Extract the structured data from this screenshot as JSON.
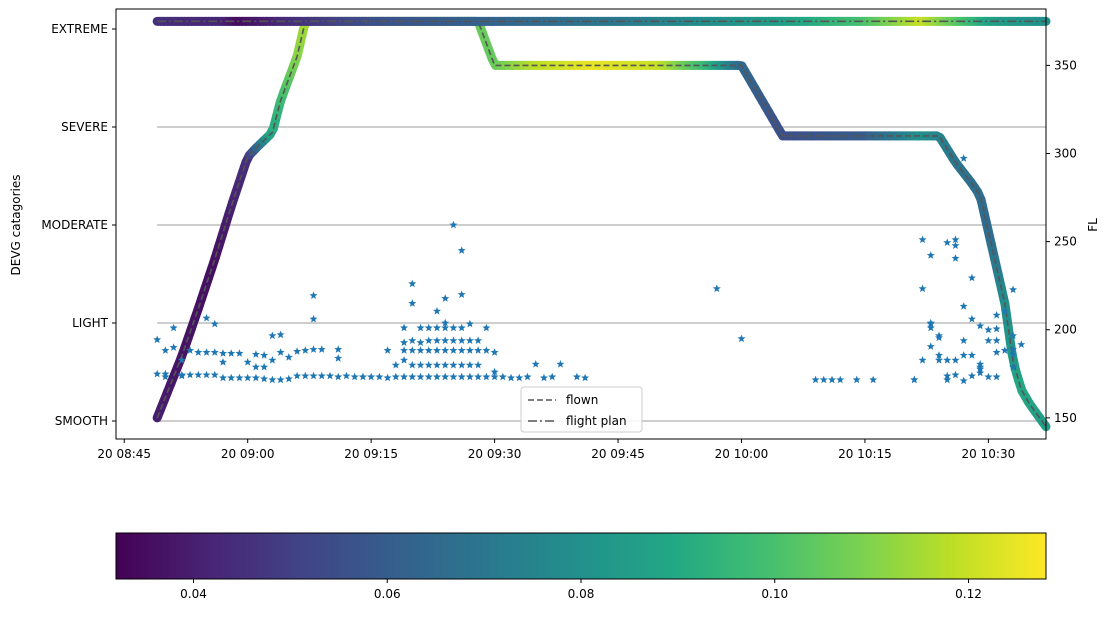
{
  "chart_data": {
    "type": "scatter",
    "x_axis": {
      "ticks": [
        "20 08:45",
        "20 09:00",
        "20 09:15",
        "20 09:30",
        "20 09:45",
        "20 10:00",
        "20 10:15",
        "20 10:30"
      ],
      "tick_minutes": [
        525,
        540,
        555,
        570,
        585,
        600,
        615,
        630
      ],
      "range_minutes": [
        524,
        637
      ]
    },
    "left_axis": {
      "label": "DEVG catagories",
      "categories": [
        "SMOOTH",
        "LIGHT",
        "MODERATE",
        "SEVERE",
        "EXTREME"
      ]
    },
    "right_axis": {
      "label": "FL",
      "ticks": [
        150,
        200,
        250,
        300,
        350
      ],
      "range": [
        138,
        382
      ]
    },
    "colorbar": {
      "ticks": [
        "0.04",
        "0.06",
        "0.08",
        "0.10",
        "0.12"
      ],
      "tick_values": [
        0.04,
        0.06,
        0.08,
        0.1,
        0.12
      ],
      "range": [
        0.032,
        0.128
      ],
      "colors": [
        "#440154",
        "#482475",
        "#414487",
        "#355f8d",
        "#2a788e",
        "#21918c",
        "#22a884",
        "#44bf70",
        "#7ad151",
        "#bddf26",
        "#fde725"
      ]
    },
    "legend": {
      "entries": [
        "flown",
        "flight plan"
      ],
      "placement": "lower center"
    },
    "grid": false,
    "category_lines": true,
    "flown_path": [
      [
        529,
        150
      ],
      [
        532,
        185
      ],
      [
        534,
        212
      ],
      [
        536,
        240
      ],
      [
        538,
        270
      ],
      [
        540,
        298
      ],
      [
        541,
        303
      ],
      [
        543,
        312
      ],
      [
        544,
        330
      ],
      [
        546,
        355
      ],
      [
        547,
        375
      ],
      [
        560,
        375
      ],
      [
        568,
        375
      ],
      [
        570,
        350
      ],
      [
        600,
        350
      ],
      [
        604,
        318
      ],
      [
        605,
        310
      ],
      [
        624,
        310
      ],
      [
        626,
        295
      ],
      [
        628,
        283
      ],
      [
        629,
        276
      ],
      [
        632,
        215
      ],
      [
        633,
        182
      ],
      [
        634,
        166
      ],
      [
        635,
        158
      ],
      [
        637,
        145
      ]
    ],
    "flown_color": [
      [
        529,
        0.04
      ],
      [
        532,
        0.037
      ],
      [
        536,
        0.036
      ],
      [
        540,
        0.045
      ],
      [
        543,
        0.09
      ],
      [
        546,
        0.11
      ],
      [
        547,
        0.115
      ],
      [
        560,
        0.11
      ],
      [
        570,
        0.105
      ],
      [
        575,
        0.118
      ],
      [
        582,
        0.125
      ],
      [
        590,
        0.12
      ],
      [
        596,
        0.095
      ],
      [
        600,
        0.065
      ],
      [
        605,
        0.055
      ],
      [
        615,
        0.06
      ],
      [
        622,
        0.08
      ],
      [
        626,
        0.07
      ],
      [
        630,
        0.065
      ],
      [
        632,
        0.078
      ],
      [
        634,
        0.09
      ],
      [
        637,
        0.085
      ]
    ],
    "plan_path": [
      [
        529,
        375
      ],
      [
        637,
        375
      ]
    ],
    "plan_color": [
      [
        529,
        0.045
      ],
      [
        537,
        0.042
      ],
      [
        539,
        0.035
      ],
      [
        541,
        0.038
      ],
      [
        546,
        0.045
      ],
      [
        555,
        0.055
      ],
      [
        565,
        0.06
      ],
      [
        575,
        0.065
      ],
      [
        585,
        0.07
      ],
      [
        595,
        0.078
      ],
      [
        605,
        0.085
      ],
      [
        615,
        0.1
      ],
      [
        622,
        0.12
      ],
      [
        627,
        0.1
      ],
      [
        631,
        0.085
      ],
      [
        637,
        0.08
      ]
    ],
    "devg_markers": [
      [
        529,
        0.83
      ],
      [
        529,
        0.48
      ],
      [
        530,
        0.72
      ],
      [
        530,
        0.48
      ],
      [
        530,
        0.45
      ],
      [
        531,
        0.95
      ],
      [
        531,
        0.75
      ],
      [
        532,
        0.47
      ],
      [
        532,
        0.62
      ],
      [
        532,
        0.46
      ],
      [
        533,
        0.72
      ],
      [
        533,
        0.47
      ],
      [
        534,
        0.7
      ],
      [
        534,
        0.47
      ],
      [
        535,
        0.7
      ],
      [
        535,
        0.47
      ],
      [
        535,
        1.05
      ],
      [
        536,
        0.7
      ],
      [
        536,
        0.47
      ],
      [
        536,
        0.99
      ],
      [
        537,
        0.69
      ],
      [
        537,
        0.6
      ],
      [
        537,
        0.44
      ],
      [
        538,
        0.69
      ],
      [
        538,
        0.44
      ],
      [
        539,
        0.69
      ],
      [
        539,
        0.44
      ],
      [
        540,
        0.44
      ],
      [
        540,
        0.6
      ],
      [
        541,
        0.68
      ],
      [
        541,
        0.55
      ],
      [
        541,
        0.44
      ],
      [
        542,
        0.55
      ],
      [
        542,
        0.43
      ],
      [
        542,
        0.67
      ],
      [
        543,
        0.42
      ],
      [
        543,
        0.62
      ],
      [
        543,
        0.87
      ],
      [
        544,
        0.88
      ],
      [
        544,
        0.42
      ],
      [
        544,
        0.7
      ],
      [
        545,
        0.43
      ],
      [
        545,
        0.65
      ],
      [
        546,
        0.71
      ],
      [
        546,
        0.46
      ],
      [
        547,
        0.72
      ],
      [
        547,
        0.46
      ],
      [
        548,
        0.73
      ],
      [
        548,
        0.46
      ],
      [
        548,
        1.28
      ],
      [
        548,
        1.04
      ],
      [
        549,
        0.46
      ],
      [
        549,
        0.73
      ],
      [
        550,
        0.46
      ],
      [
        551,
        0.45
      ],
      [
        551,
        0.73
      ],
      [
        551,
        0.64
      ],
      [
        552,
        0.46
      ],
      [
        553,
        0.45
      ],
      [
        554,
        0.45
      ],
      [
        555,
        0.45
      ],
      [
        556,
        0.45
      ],
      [
        557,
        0.44
      ],
      [
        557,
        0.72
      ],
      [
        558,
        0.45
      ],
      [
        558,
        0.57
      ],
      [
        559,
        0.45
      ],
      [
        559,
        0.62
      ],
      [
        559,
        0.72
      ],
      [
        559,
        0.8
      ],
      [
        559,
        0.95
      ],
      [
        560,
        0.45
      ],
      [
        560,
        0.57
      ],
      [
        560,
        0.72
      ],
      [
        560,
        0.82
      ],
      [
        560,
        1.4
      ],
      [
        560,
        1.2
      ],
      [
        561,
        0.45
      ],
      [
        561,
        0.57
      ],
      [
        561,
        0.72
      ],
      [
        561,
        0.8
      ],
      [
        561,
        0.95
      ],
      [
        562,
        0.45
      ],
      [
        562,
        0.57
      ],
      [
        562,
        0.72
      ],
      [
        562,
        0.82
      ],
      [
        562,
        0.95
      ],
      [
        563,
        0.45
      ],
      [
        563,
        0.57
      ],
      [
        563,
        0.72
      ],
      [
        563,
        0.82
      ],
      [
        563,
        0.95
      ],
      [
        563,
        1.12
      ],
      [
        564,
        0.45
      ],
      [
        564,
        0.57
      ],
      [
        564,
        0.72
      ],
      [
        564,
        0.82
      ],
      [
        564,
        0.95
      ],
      [
        564,
        1.25
      ],
      [
        564,
        1.0
      ],
      [
        565,
        0.45
      ],
      [
        565,
        0.57
      ],
      [
        565,
        0.72
      ],
      [
        565,
        0.82
      ],
      [
        565,
        0.95
      ],
      [
        565,
        2.0
      ],
      [
        566,
        0.45
      ],
      [
        566,
        0.57
      ],
      [
        566,
        0.72
      ],
      [
        566,
        0.82
      ],
      [
        566,
        0.95
      ],
      [
        566,
        1.29
      ],
      [
        566,
        1.74
      ],
      [
        567,
        0.45
      ],
      [
        567,
        0.57
      ],
      [
        567,
        0.72
      ],
      [
        567,
        0.82
      ],
      [
        567,
        0.99
      ],
      [
        568,
        0.45
      ],
      [
        568,
        0.57
      ],
      [
        568,
        0.72
      ],
      [
        568,
        0.82
      ],
      [
        569,
        0.45
      ],
      [
        569,
        0.72
      ],
      [
        569,
        0.95
      ],
      [
        570,
        0.45
      ],
      [
        570,
        0.7
      ],
      [
        570,
        0.5
      ],
      [
        571,
        0.45
      ],
      [
        572,
        0.44
      ],
      [
        573,
        0.44
      ],
      [
        574,
        0.45
      ],
      [
        575,
        0.58
      ],
      [
        576,
        0.44
      ],
      [
        577,
        0.45
      ],
      [
        578,
        0.58
      ],
      [
        580,
        0.45
      ],
      [
        581,
        0.44
      ],
      [
        597,
        1.35
      ],
      [
        600,
        0.84
      ],
      [
        609,
        0.42
      ],
      [
        610,
        0.42
      ],
      [
        611,
        0.42
      ],
      [
        612,
        0.42
      ],
      [
        614,
        0.42
      ],
      [
        616,
        0.42
      ],
      [
        621,
        0.42
      ],
      [
        621,
        0.42
      ],
      [
        622,
        1.35
      ],
      [
        622,
        1.85
      ],
      [
        622,
        0.62
      ],
      [
        623,
        0.99
      ],
      [
        623,
        1.0
      ],
      [
        623,
        0.95
      ],
      [
        623,
        0.76
      ],
      [
        623,
        1.69
      ],
      [
        624,
        0.85
      ],
      [
        624,
        0.87
      ],
      [
        624,
        0.67
      ],
      [
        624,
        0.62
      ],
      [
        625,
        1.82
      ],
      [
        625,
        0.46
      ],
      [
        625,
        0.42
      ],
      [
        625,
        0.62
      ],
      [
        626,
        0.62
      ],
      [
        626,
        1.66
      ],
      [
        626,
        1.85
      ],
      [
        626,
        1.79
      ],
      [
        626,
        0.47
      ],
      [
        627,
        1.17
      ],
      [
        627,
        0.82
      ],
      [
        627,
        0.67
      ],
      [
        627,
        2.68
      ],
      [
        627,
        0.41
      ],
      [
        628,
        1.46
      ],
      [
        628,
        0.46
      ],
      [
        628,
        0.67
      ],
      [
        628,
        1.04
      ],
      [
        629,
        0.53
      ],
      [
        629,
        0.55
      ],
      [
        629,
        0.49
      ],
      [
        629,
        0.97
      ],
      [
        629,
        0.58
      ],
      [
        630,
        0.45
      ],
      [
        630,
        0.93
      ],
      [
        630,
        0.82
      ],
      [
        631,
        0.45
      ],
      [
        631,
        0.7
      ],
      [
        631,
        1.08
      ],
      [
        631,
        0.94
      ],
      [
        631,
        0.82
      ],
      [
        632,
        0.72
      ],
      [
        632,
        1.12
      ],
      [
        633,
        0.73
      ],
      [
        633,
        0.68
      ],
      [
        633,
        0.55
      ],
      [
        633,
        0.87
      ],
      [
        633,
        1.34
      ],
      [
        634,
        0.78
      ]
    ]
  }
}
